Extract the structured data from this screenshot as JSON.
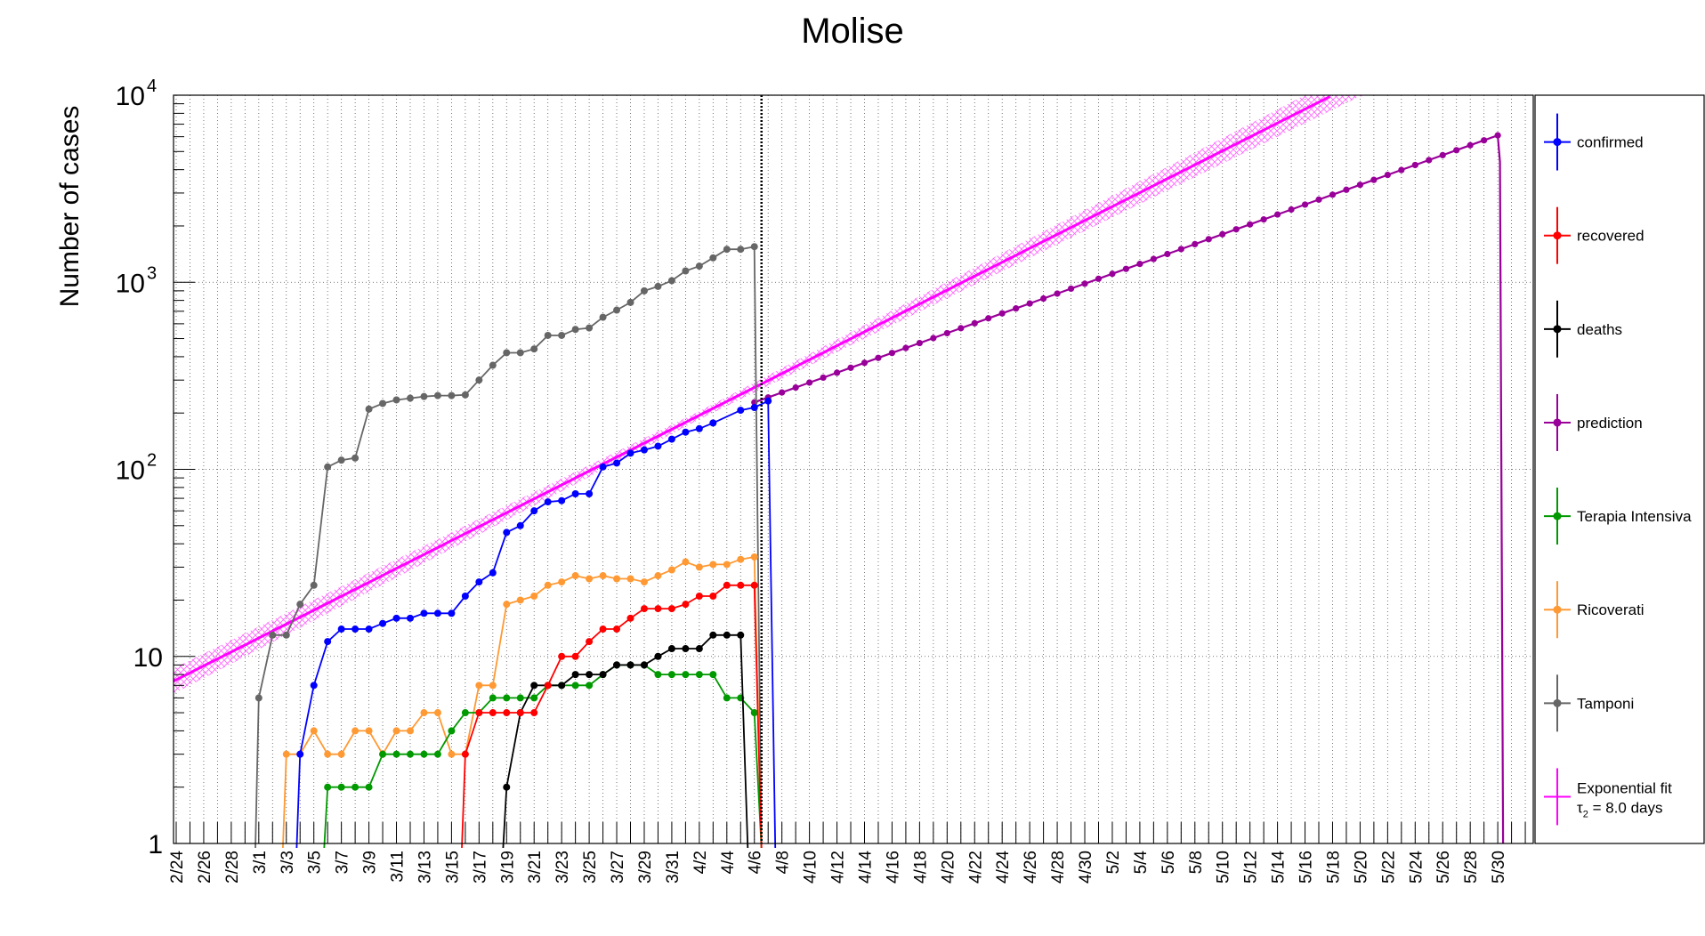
{
  "chart_data": {
    "type": "line",
    "title": "Molise",
    "ylabel": "Number of cases",
    "xlabel": "",
    "y_scale": "log",
    "ylim": [
      1,
      10000
    ],
    "y_ticks": [
      {
        "value": 1,
        "base": "1",
        "exp": ""
      },
      {
        "value": 10,
        "base": "10",
        "exp": ""
      },
      {
        "value": 100,
        "base": "10",
        "exp": "2"
      },
      {
        "value": 1000,
        "base": "10",
        "exp": "3"
      },
      {
        "value": 10000,
        "base": "10",
        "exp": "4"
      }
    ],
    "x_tick_labels": [
      "2/24",
      "2/26",
      "2/28",
      "3/1",
      "3/3",
      "3/5",
      "3/7",
      "3/9",
      "3/11",
      "3/13",
      "3/15",
      "3/17",
      "3/19",
      "3/21",
      "3/23",
      "3/25",
      "3/27",
      "3/29",
      "3/31",
      "4/2",
      "4/4",
      "4/6",
      "4/8",
      "4/10",
      "4/12",
      "4/14",
      "4/16",
      "4/18",
      "4/20",
      "4/22",
      "4/24",
      "4/26",
      "4/28",
      "4/30",
      "5/2",
      "5/4",
      "5/6",
      "5/8",
      "5/10",
      "5/12",
      "5/14",
      "5/16",
      "5/18",
      "5/20",
      "5/22",
      "5/24",
      "5/26",
      "5/28",
      "5/30"
    ],
    "grid": true,
    "legend_position": "right",
    "vertical_marker": "4/6",
    "series": [
      {
        "name": "confirmed",
        "color": "#0000ff",
        "start": "3/4",
        "values": [
          3,
          7,
          12,
          14,
          14,
          14,
          15,
          16,
          16,
          17,
          17,
          17,
          21,
          25,
          28,
          46,
          50,
          60,
          67,
          68,
          74,
          74,
          103,
          108,
          122,
          127,
          133,
          145,
          158,
          165,
          177,
          null,
          207,
          214,
          232
        ]
      },
      {
        "name": "recovered",
        "color": "#ff0000",
        "start": "3/16",
        "values": [
          3,
          5,
          5,
          5,
          5,
          5,
          7,
          10,
          10,
          12,
          14,
          14,
          16,
          18,
          18,
          18,
          19,
          21,
          21,
          24,
          24,
          24
        ]
      },
      {
        "name": "deaths",
        "color": "#000000",
        "start": "3/19",
        "values": [
          2,
          5,
          7,
          7,
          7,
          8,
          8,
          8,
          9,
          9,
          9,
          10,
          11,
          11,
          11,
          13,
          13,
          13
        ]
      },
      {
        "name": "Terapia Intensiva",
        "color": "#009900",
        "start": "3/6",
        "values": [
          2,
          2,
          2,
          2,
          3,
          3,
          3,
          3,
          3,
          4,
          5,
          5,
          6,
          6,
          6,
          6,
          7,
          7,
          7,
          7,
          8,
          9,
          9,
          9,
          8,
          8,
          8,
          8,
          8,
          6,
          6,
          5
        ]
      },
      {
        "name": "Ricoverati",
        "color": "#ff9933",
        "start": "3/3",
        "values": [
          3,
          3,
          4,
          3,
          3,
          4,
          4,
          3,
          4,
          4,
          5,
          5,
          3,
          3,
          7,
          7,
          19,
          20,
          21,
          24,
          25,
          27,
          26,
          27,
          26,
          26,
          25,
          27,
          29,
          32,
          30,
          31,
          31,
          33,
          34
        ]
      },
      {
        "name": "Tamponi",
        "color": "#666666",
        "start": "3/1",
        "values": [
          6,
          13,
          13,
          19,
          24,
          103,
          112,
          115,
          210,
          225,
          235,
          240,
          245,
          248,
          248,
          250,
          300,
          360,
          420,
          420,
          440,
          520,
          520,
          560,
          570,
          650,
          710,
          780,
          900,
          950,
          1020,
          1150,
          1220,
          1350,
          1500,
          1500,
          1550
        ]
      },
      {
        "name": "prediction",
        "color": "#990099",
        "start": "4/6",
        "end": "5/30",
        "start_value": 228,
        "end_value": 6100
      },
      {
        "name": "Exponential fit",
        "legend_sub": "τ",
        "legend_sub_index": "2",
        "legend_sub_rest": " = 8.0 days",
        "color": "#ff00ff",
        "band_color": "#ff88ff",
        "start": "2/24",
        "end": "5/18",
        "start_value": 7.5,
        "end_value": 10000,
        "doubling_days": 8.0
      }
    ]
  }
}
